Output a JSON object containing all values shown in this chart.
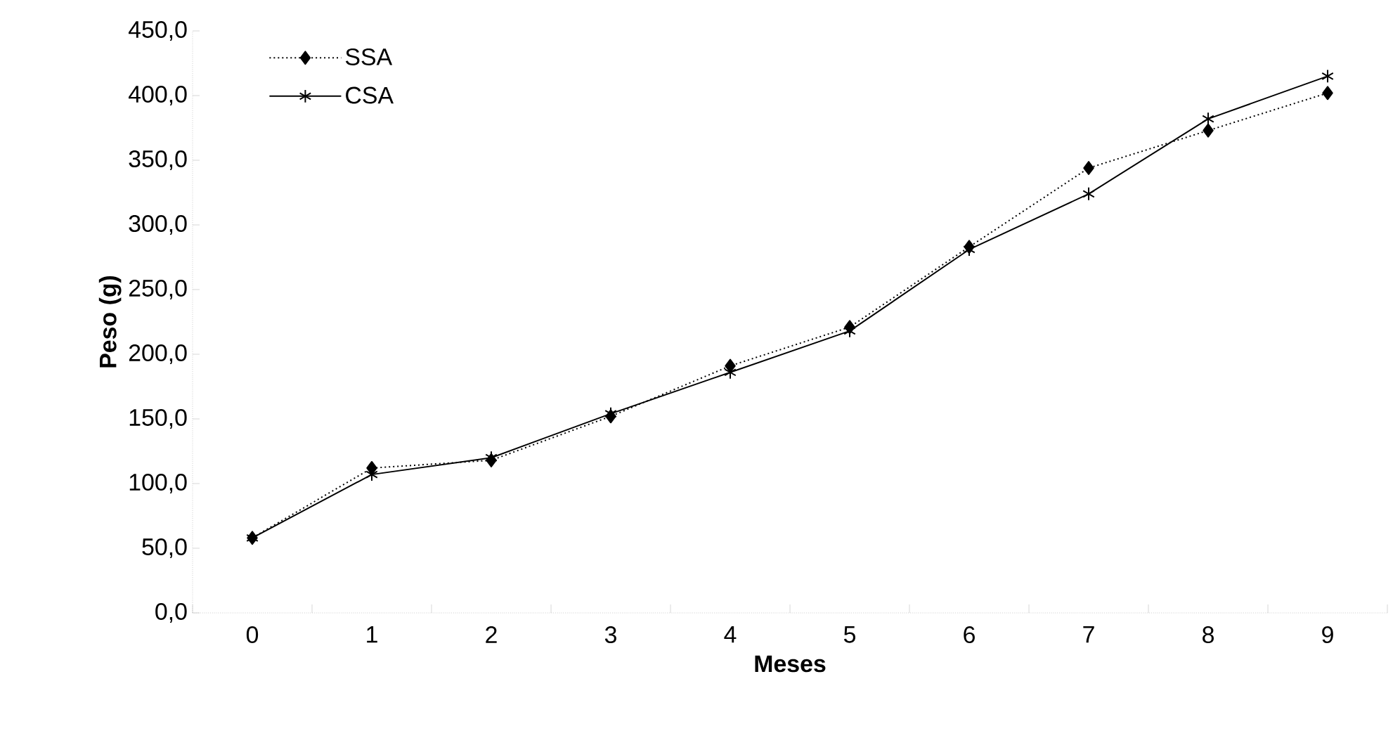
{
  "chart_data": {
    "type": "line",
    "xlabel": "Meses",
    "ylabel": "Peso (g)",
    "categories": [
      "0",
      "1",
      "2",
      "3",
      "4",
      "5",
      "6",
      "7",
      "8",
      "9"
    ],
    "series": [
      {
        "name": "SSA",
        "color": "#000000",
        "marker": "diamond",
        "line_style": "dotted",
        "values": [
          58,
          112,
          118,
          152,
          191,
          221,
          283,
          344,
          373,
          402
        ]
      },
      {
        "name": "CSA",
        "color": "#000000",
        "marker": "cross",
        "line_style": "solid",
        "values": [
          58,
          107,
          120,
          154,
          186,
          218,
          281,
          324,
          382,
          415
        ]
      }
    ],
    "ylim": [
      0,
      450
    ],
    "yticks": [
      {
        "value": 0,
        "label": "0,0"
      },
      {
        "value": 50,
        "label": "50,0"
      },
      {
        "value": 100,
        "label": "100,0"
      },
      {
        "value": 150,
        "label": "150,0"
      },
      {
        "value": 200,
        "label": "200,0"
      },
      {
        "value": 250,
        "label": "250,0"
      },
      {
        "value": 300,
        "label": "300,0"
      },
      {
        "value": 350,
        "label": "350,0"
      },
      {
        "value": 400,
        "label": "400,0"
      },
      {
        "value": 450,
        "label": "450,0"
      }
    ],
    "grid": false,
    "legend": "top left"
  }
}
